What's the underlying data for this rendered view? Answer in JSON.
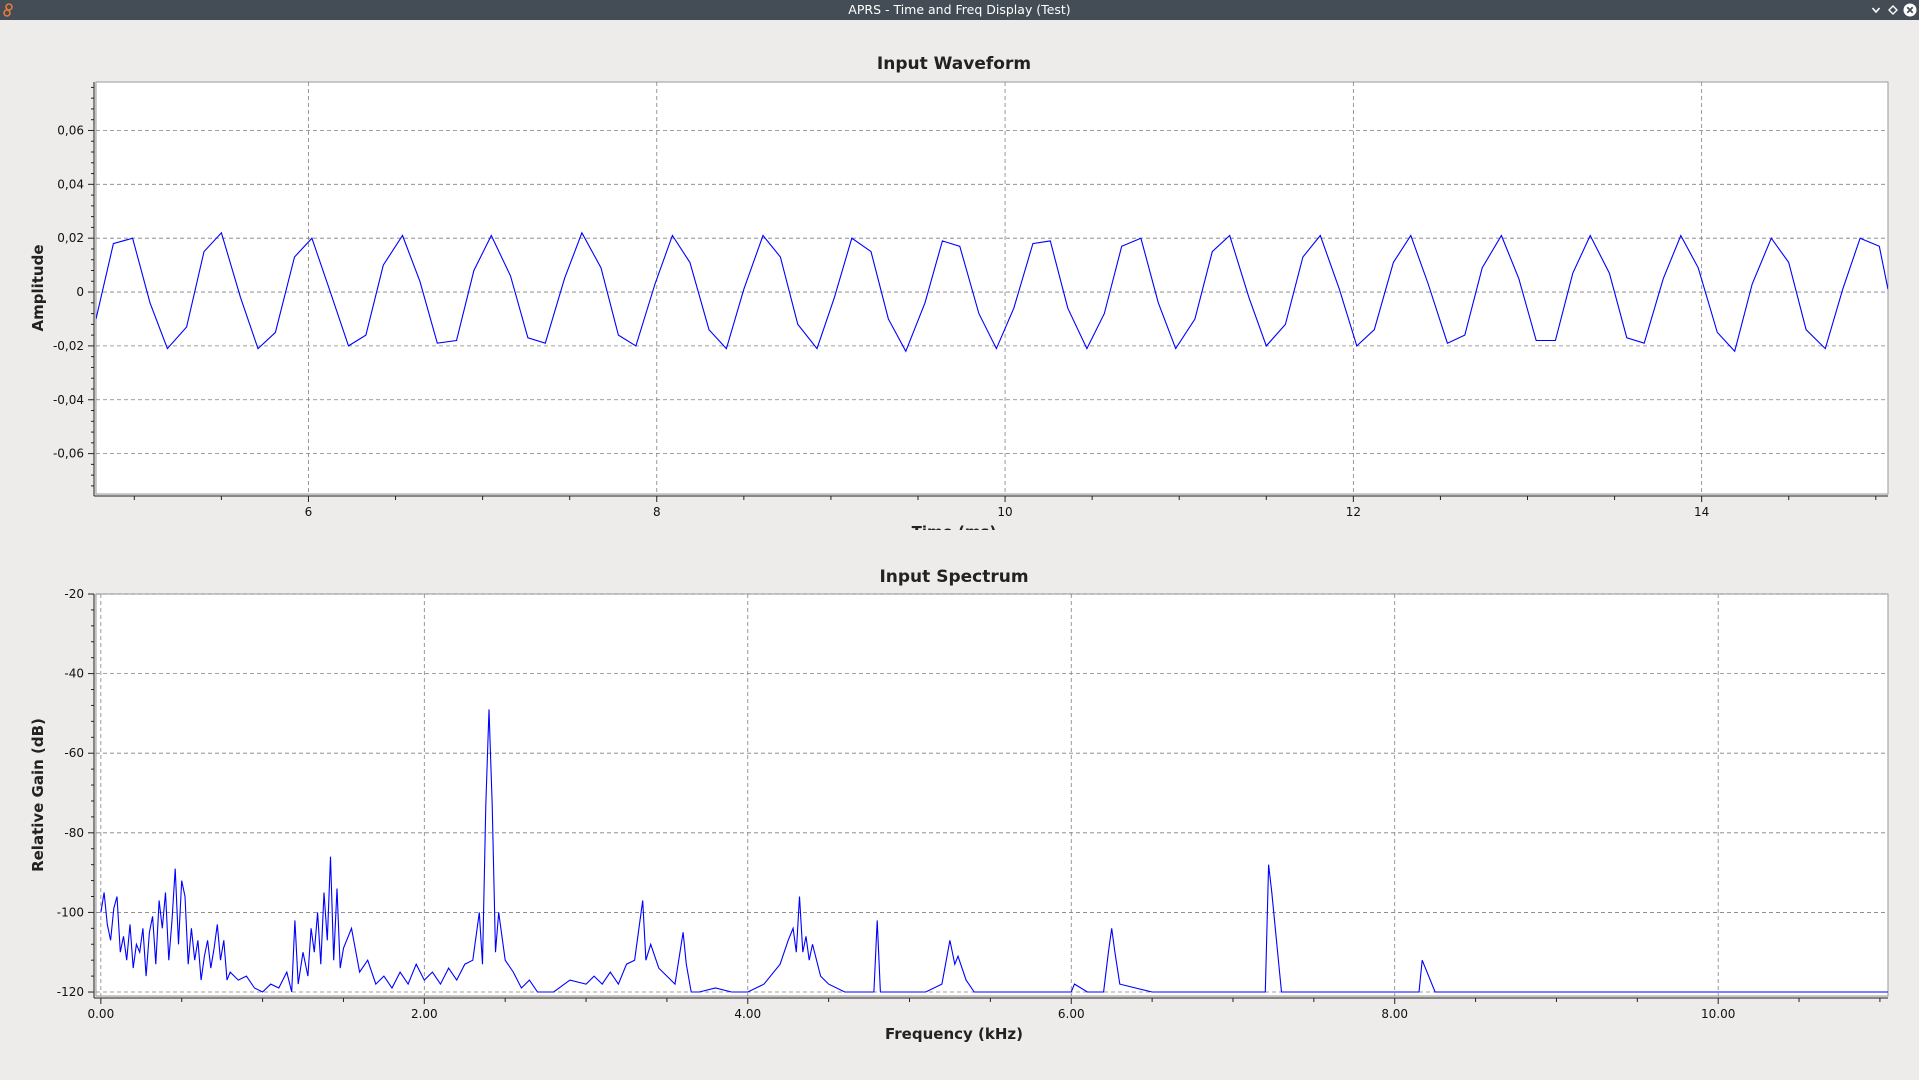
{
  "window": {
    "title": "APRS - Time and Freq Display (Test)",
    "icons": [
      "app-icon",
      "minimize-icon",
      "restore-icon",
      "close-icon"
    ]
  },
  "colors": {
    "titlebar": "#444d55",
    "background": "#edeceb",
    "plot_background": "#ffffff",
    "grid": "#808080",
    "trace": "#0000ff"
  },
  "chart_data": [
    {
      "type": "line",
      "title": "Input Waveform",
      "xlabel": "Time (ms)",
      "ylabel": "Amplitude",
      "xlim": [
        4.78,
        15.07
      ],
      "ylim": [
        -0.075,
        0.078
      ],
      "x_ticks": [
        6,
        8,
        10,
        12,
        14
      ],
      "x_tick_labels": [
        "6",
        "8",
        "10",
        "12",
        "14"
      ],
      "y_ticks": [
        0.06,
        0.04,
        0.02,
        0,
        -0.02,
        -0.04,
        -0.06
      ],
      "y_tick_labels": [
        "0,06",
        "0,04",
        "0,02",
        "0",
        "-0,02",
        "-0,04",
        "-0,06"
      ],
      "grid": true,
      "signal": {
        "frequency_khz": 2.4,
        "amplitude": 0.0205
      },
      "series": [
        {
          "color": "#0000ff",
          "x": [
            4.78,
            4.88,
            4.99,
            5.09,
            5.19,
            5.3,
            5.4,
            5.5,
            5.61,
            5.71,
            5.81,
            5.92,
            6.02,
            6.12,
            6.23,
            6.33,
            6.43,
            6.54,
            6.64,
            6.74,
            6.85,
            6.95,
            7.05,
            7.16,
            7.26,
            7.36,
            7.47,
            7.57,
            7.68,
            7.78,
            7.88,
            7.99,
            8.09,
            8.19,
            8.3,
            8.4,
            8.5,
            8.61,
            8.71,
            8.81,
            8.92,
            9.02,
            9.12,
            9.23,
            9.33,
            9.43,
            9.54,
            9.64,
            9.74,
            9.85,
            9.95,
            10.05,
            10.16,
            10.26,
            10.36,
            10.47,
            10.57,
            10.67,
            10.78,
            10.88,
            10.98,
            11.09,
            11.19,
            11.29,
            11.4,
            11.5,
            11.61,
            11.71,
            11.81,
            11.92,
            12.02,
            12.12,
            12.23,
            12.33,
            12.43,
            12.54,
            12.64,
            12.74,
            12.85,
            12.95,
            13.05,
            13.16,
            13.26,
            13.36,
            13.47,
            13.57,
            13.67,
            13.78,
            13.88,
            13.98,
            14.09,
            14.19,
            14.29,
            14.4,
            14.5,
            14.6,
            14.71,
            14.81,
            14.91,
            15.02,
            15.07
          ],
          "y": [
            -0.01,
            0.018,
            0.02,
            -0.004,
            -0.021,
            -0.013,
            0.015,
            0.022,
            -0.002,
            -0.021,
            -0.015,
            0.013,
            0.02,
            0.001,
            -0.02,
            -0.016,
            0.01,
            0.021,
            0.004,
            -0.019,
            -0.018,
            0.008,
            0.021,
            0.006,
            -0.017,
            -0.019,
            0.005,
            0.022,
            0.009,
            -0.016,
            -0.02,
            0.003,
            0.021,
            0.011,
            -0.014,
            -0.021,
            0.001,
            0.021,
            0.013,
            -0.012,
            -0.021,
            -0.002,
            0.02,
            0.015,
            -0.01,
            -0.022,
            -0.004,
            0.019,
            0.017,
            -0.008,
            -0.021,
            -0.006,
            0.018,
            0.019,
            -0.006,
            -0.021,
            -0.008,
            0.017,
            0.02,
            -0.004,
            -0.021,
            -0.01,
            0.015,
            0.021,
            -0.002,
            -0.02,
            -0.012,
            0.013,
            0.021,
            0.001,
            -0.02,
            -0.014,
            0.011,
            0.021,
            0.003,
            -0.019,
            -0.016,
            0.009,
            0.021,
            0.005,
            -0.018,
            -0.018,
            0.007,
            0.021,
            0.007,
            -0.017,
            -0.019,
            0.005,
            0.021,
            0.009,
            -0.015,
            -0.022,
            0.003,
            0.02,
            0.011,
            -0.014,
            -0.021,
            0.001,
            0.02,
            0.017,
            0.001
          ]
        }
      ]
    },
    {
      "type": "line",
      "title": "Input Spectrum",
      "xlabel": "Frequency (kHz)",
      "ylabel": "Relative Gain (dB)",
      "xlim": [
        -0.03,
        11.05
      ],
      "ylim": [
        -121,
        -20
      ],
      "x_ticks": [
        0,
        2,
        4,
        6,
        8,
        10
      ],
      "x_tick_labels": [
        "0.00",
        "2.00",
        "4.00",
        "6.00",
        "8.00",
        "10.00"
      ],
      "y_ticks": [
        -20,
        -40,
        -60,
        -80,
        -100,
        -120
      ],
      "y_tick_labels": [
        "-20",
        "-40",
        "-60",
        "-80",
        "-100",
        "-120"
      ],
      "grid": true,
      "floor_db": -120,
      "series": [
        {
          "color": "#0000ff",
          "x": [
            0.0,
            0.02,
            0.04,
            0.06,
            0.08,
            0.1,
            0.12,
            0.14,
            0.16,
            0.18,
            0.2,
            0.22,
            0.24,
            0.26,
            0.28,
            0.3,
            0.32,
            0.34,
            0.36,
            0.38,
            0.4,
            0.42,
            0.44,
            0.46,
            0.48,
            0.5,
            0.52,
            0.54,
            0.56,
            0.58,
            0.6,
            0.62,
            0.64,
            0.66,
            0.68,
            0.7,
            0.72,
            0.74,
            0.76,
            0.78,
            0.8,
            0.85,
            0.9,
            0.95,
            1.0,
            1.05,
            1.1,
            1.15,
            1.18,
            1.2,
            1.22,
            1.25,
            1.28,
            1.3,
            1.32,
            1.34,
            1.36,
            1.38,
            1.4,
            1.42,
            1.44,
            1.46,
            1.48,
            1.5,
            1.55,
            1.6,
            1.65,
            1.7,
            1.75,
            1.8,
            1.85,
            1.9,
            1.95,
            2.0,
            2.05,
            2.1,
            2.15,
            2.2,
            2.25,
            2.3,
            2.34,
            2.36,
            2.38,
            2.4,
            2.42,
            2.44,
            2.46,
            2.5,
            2.55,
            2.6,
            2.65,
            2.7,
            2.8,
            2.9,
            3.0,
            3.05,
            3.1,
            3.15,
            3.2,
            3.25,
            3.3,
            3.35,
            3.37,
            3.4,
            3.45,
            3.5,
            3.55,
            3.6,
            3.62,
            3.65,
            3.7,
            3.8,
            3.9,
            4.0,
            4.1,
            4.2,
            4.25,
            4.28,
            4.3,
            4.32,
            4.34,
            4.36,
            4.38,
            4.4,
            4.45,
            4.5,
            4.6,
            4.7,
            4.78,
            4.8,
            4.82,
            4.9,
            5.0,
            5.1,
            5.2,
            5.25,
            5.28,
            5.3,
            5.35,
            5.4,
            5.5,
            5.7,
            6.0,
            6.02,
            6.1,
            6.2,
            6.23,
            6.25,
            6.27,
            6.3,
            6.5,
            7.0,
            7.15,
            7.2,
            7.22,
            7.24,
            7.3,
            7.6,
            8.0,
            8.15,
            8.17,
            8.19,
            8.25,
            8.6,
            9.2,
            10.0,
            10.6,
            11.05
          ],
          "y": [
            -100,
            -95,
            -103,
            -107,
            -99,
            -96,
            -110,
            -106,
            -112,
            -103,
            -114,
            -108,
            -110,
            -104,
            -116,
            -105,
            -101,
            -113,
            -97,
            -104,
            -95,
            -112,
            -102,
            -89,
            -108,
            -92,
            -96,
            -113,
            -104,
            -112,
            -107,
            -117,
            -111,
            -107,
            -114,
            -109,
            -103,
            -112,
            -107,
            -117,
            -115,
            -117,
            -116,
            -119,
            -120,
            -118,
            -119,
            -115,
            -120,
            -102,
            -118,
            -110,
            -116,
            -104,
            -110,
            -100,
            -113,
            -95,
            -107,
            -86,
            -112,
            -94,
            -114,
            -109,
            -104,
            -115,
            -112,
            -118,
            -116,
            -119,
            -115,
            -118,
            -113,
            -117,
            -115,
            -118,
            -114,
            -117,
            -113,
            -112,
            -100,
            -113,
            -73,
            -49,
            -73,
            -110,
            -100,
            -112,
            -115,
            -119,
            -117,
            -120,
            -120,
            -117,
            -118,
            -116,
            -118,
            -115,
            -118,
            -113,
            -112,
            -97,
            -112,
            -108,
            -114,
            -116,
            -118,
            -105,
            -113,
            -120,
            -120,
            -119,
            -120,
            -120,
            -118,
            -113,
            -107,
            -104,
            -110,
            -96,
            -110,
            -106,
            -112,
            -108,
            -116,
            -118,
            -120,
            -120,
            -120,
            -102,
            -120,
            -120,
            -120,
            -120,
            -118,
            -107,
            -113,
            -111,
            -117,
            -120,
            -120,
            -120,
            -120,
            -118,
            -120,
            -120,
            -110,
            -104,
            -110,
            -118,
            -120,
            -120,
            -120,
            -120,
            -88,
            -95,
            -120,
            -120,
            -120,
            -120,
            -112,
            -114,
            -120,
            -120,
            -120,
            -120,
            -120,
            -120
          ]
        }
      ]
    }
  ]
}
